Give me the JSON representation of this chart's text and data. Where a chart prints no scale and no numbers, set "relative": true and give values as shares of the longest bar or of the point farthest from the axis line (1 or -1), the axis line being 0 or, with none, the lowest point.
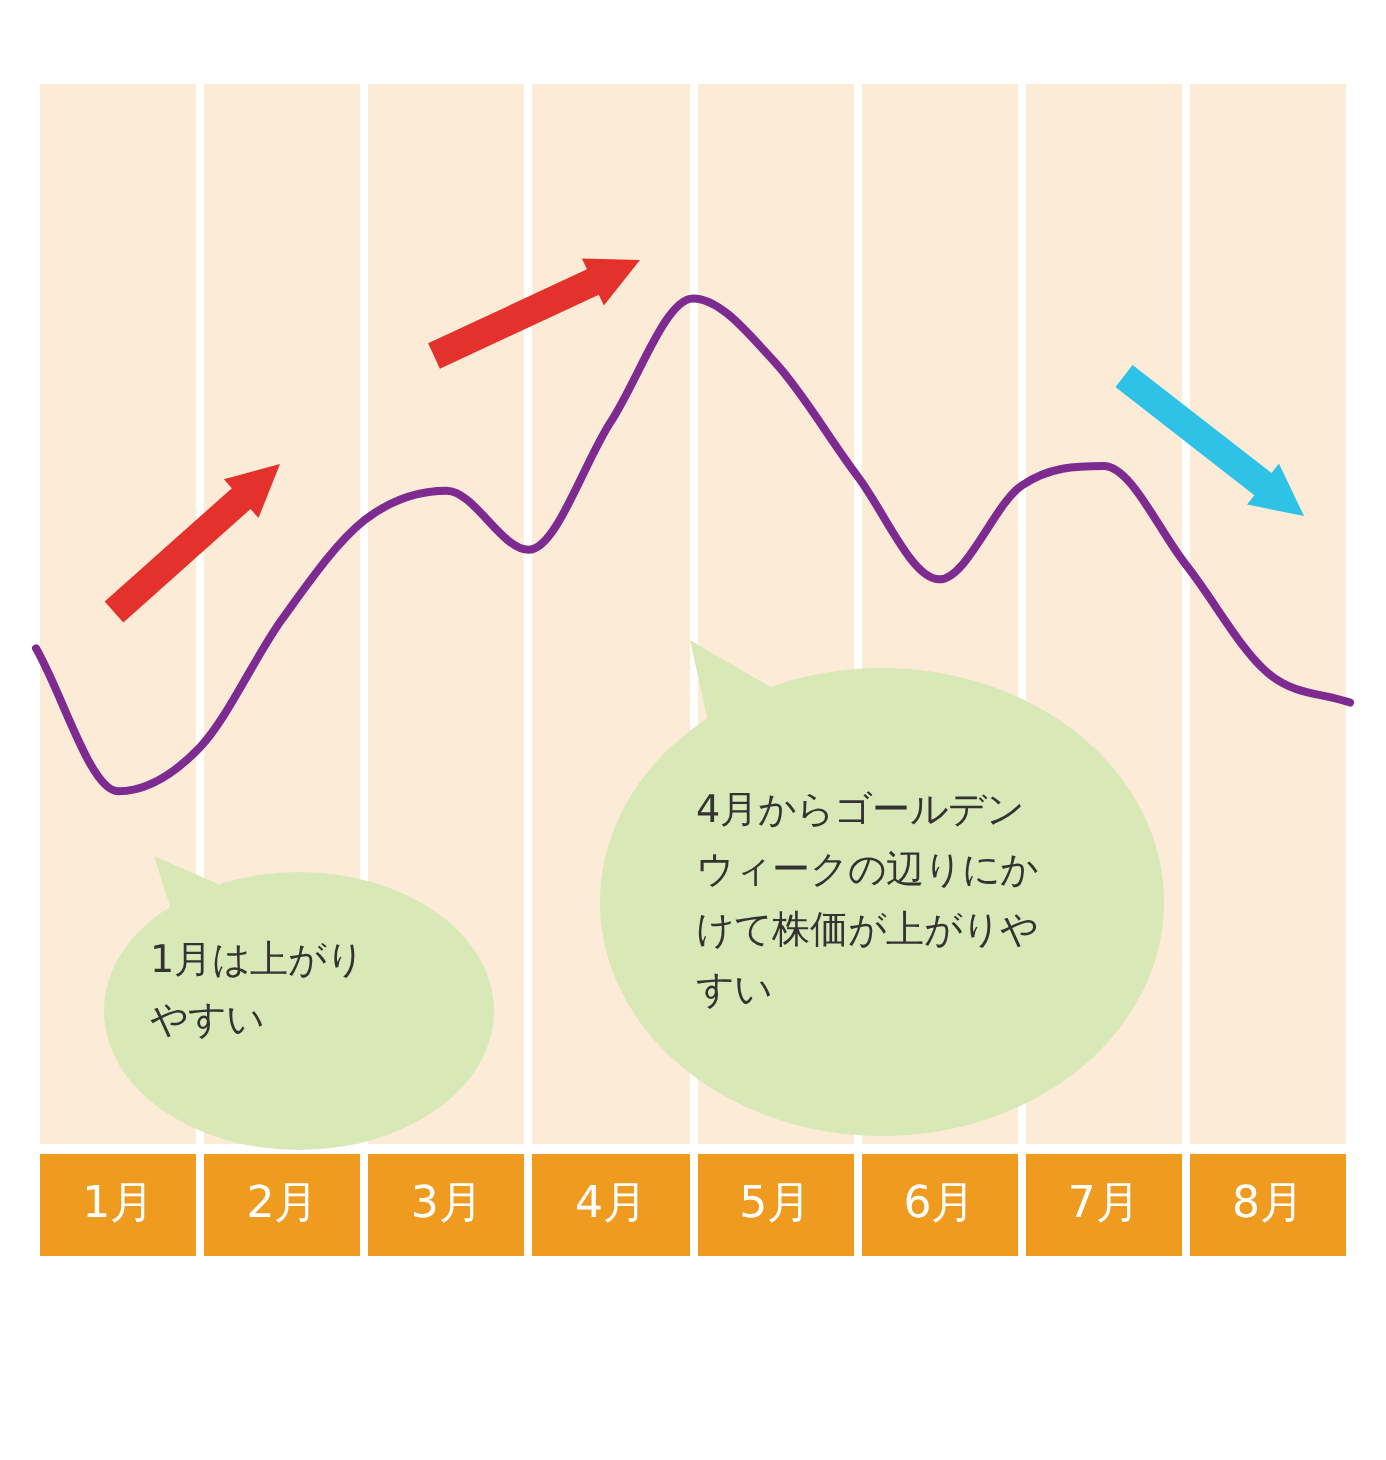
{
  "chart_data": {
    "type": "line",
    "relative": true,
    "categories": [
      null,
      "1月",
      null,
      "2月",
      null,
      "3月",
      null,
      "4月",
      null,
      "5月",
      null,
      "6月",
      null,
      "7月",
      null,
      "8月",
      null
    ],
    "series": [
      {
        "color": "#7d2a91",
        "values": [
          0.29,
          0,
          0.09,
          0.35,
          0.55,
          0.61,
          0.49,
          0.75,
          1,
          0.87,
          0.64,
          0.43,
          0.62,
          0.66,
          0.46,
          0.24,
          0.18
        ]
      }
    ],
    "annotations": [
      "1月は上がりやすい",
      "4月からゴールデンウィークの辺りにかけて株価が上がりやすい"
    ],
    "legend": false,
    "grid": false,
    "marker": "none",
    "line_style": "solid"
  }
}
